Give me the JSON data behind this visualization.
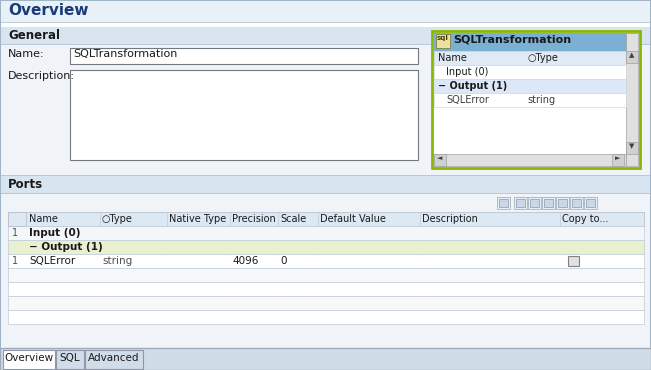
{
  "title": "Overview",
  "white": "#ffffff",
  "header_bg": "#e8f0f8",
  "general_label": "General",
  "name_label": "Name:",
  "name_value": "SQLTransformation",
  "desc_label": "Description:",
  "ports_label": "Ports",
  "sql_box_title": "SQLTransformation",
  "sql_box_border": "#8ab800",
  "sql_box_header_bg": "#7bafd4",
  "sql_col1": "Name",
  "sql_col2": "Type",
  "sql_input_row": "Input (0)",
  "sql_output_row": "Output (1)",
  "sql_sqlerror": "SQLError",
  "sql_string": "string",
  "table_header_bg": "#dce8f4",
  "table_output_bg": "#e8f0d0",
  "table_cols": [
    "Name",
    "○Type",
    "Native Type",
    "Precision",
    "Scale",
    "Default Value",
    "Description",
    "Copy to..."
  ],
  "tab_overview": "Overview",
  "tab_sql": "SQL",
  "tab_advanced": "Advanced",
  "outer_border": "#a0b4c8",
  "section_bg": "#f0f4f8",
  "section_border": "#b8c8d8",
  "general_header_bg": "#d8e4f0",
  "scrollbar_bg": "#c8c8c8",
  "scrollbar_btn": "#d0d0d0"
}
